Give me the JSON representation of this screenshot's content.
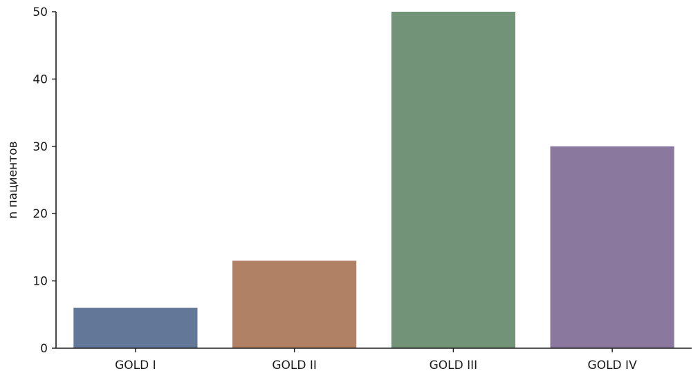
{
  "chart_data": {
    "type": "bar",
    "categories": [
      "GOLD I",
      "GOLD II",
      "GOLD III",
      "GOLD IV"
    ],
    "values": [
      6,
      13,
      50,
      30
    ],
    "colors": [
      "#637899",
      "#b08164",
      "#739379",
      "#8a789f"
    ],
    "title": "",
    "xlabel": "",
    "ylabel": "n пациентов",
    "ylim": [
      0,
      50
    ],
    "yticks": [
      0,
      10,
      20,
      30,
      40,
      50
    ],
    "grid": false,
    "legend": "none"
  }
}
